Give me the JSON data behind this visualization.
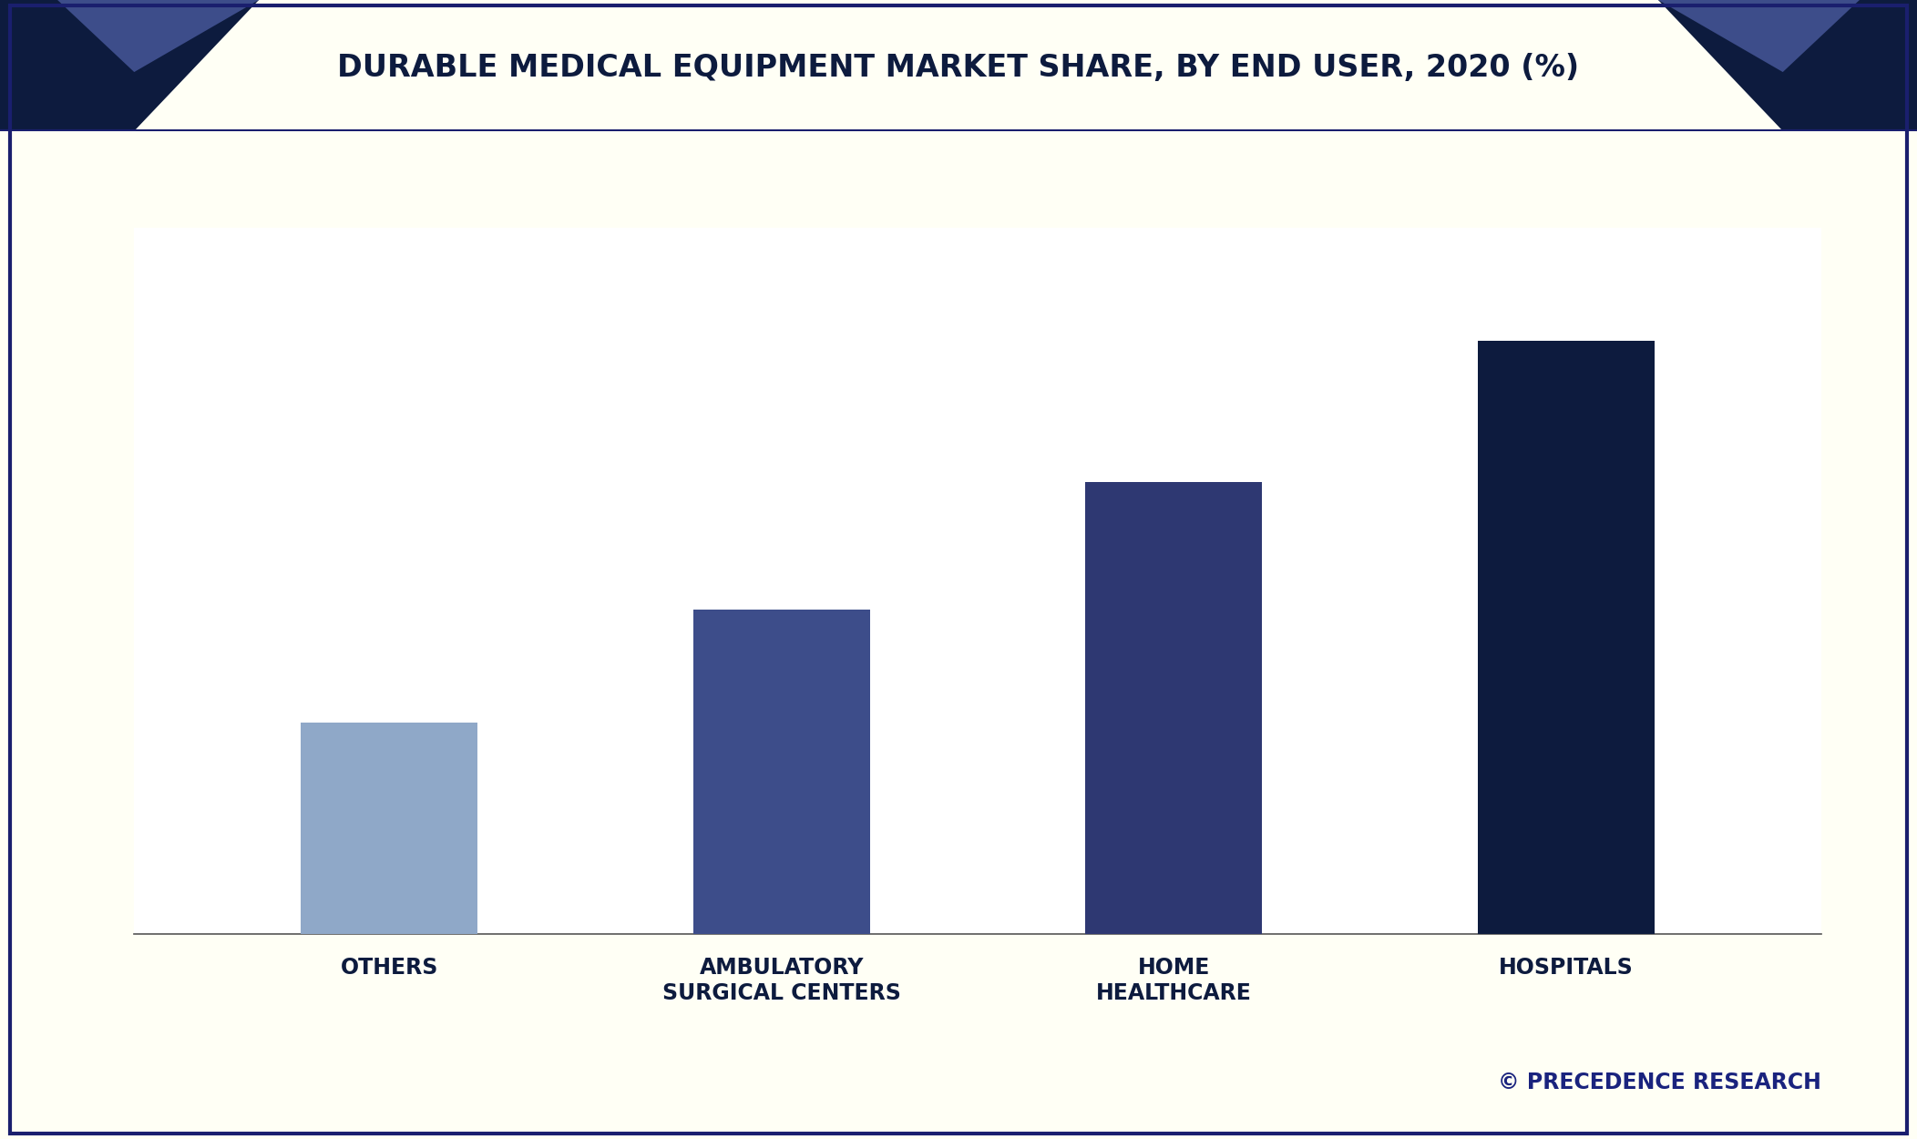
{
  "title": "DURABLE MEDICAL EQUIPMENT MARKET SHARE, BY END USER, 2020 (%)",
  "categories": [
    "OTHERS",
    "AMBULATORY\nSURGICAL CENTERS",
    "HOME\nHEALTHCARE",
    "HOSPITALS"
  ],
  "values": [
    15,
    23,
    32,
    42
  ],
  "bar_colors": [
    "#8fa8c8",
    "#3d4d8a",
    "#2e3872",
    "#0d1b3e"
  ],
  "background_color": "#fffff5",
  "chart_bg_color": "#ffffff",
  "header_dark_color": "#0d1b3e",
  "header_mid_color": "#3d4d8a",
  "title_color": "#0d1b3e",
  "border_color": "#1a1f6e",
  "watermark": "© PRECEDENCE RESEARCH",
  "watermark_color": "#1a237e",
  "ylim": [
    0,
    50
  ],
  "bar_width": 0.45,
  "title_fontsize": 24,
  "tick_fontsize": 17,
  "watermark_fontsize": 17
}
